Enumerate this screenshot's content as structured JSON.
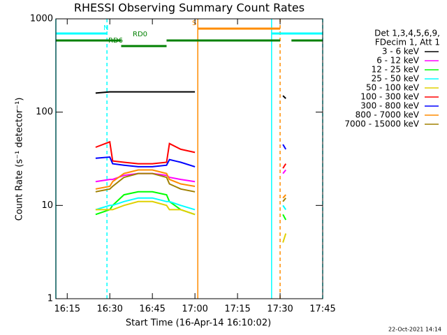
{
  "chart_data": {
    "type": "line",
    "title": "RHESSI Observing Summary Count Rates",
    "xlabel": "Start Time (16-Apr-14 16:10:02)",
    "ylabel": "Count Rate (s⁻¹ detector⁻¹)",
    "legend_header": [
      "Det 1,3,4,5,6,9,",
      "FDecim 1, Att 1"
    ],
    "timestamp": "22-Oct-2021 14:14",
    "log_y": true,
    "xlim": [
      "16:11",
      "17:45"
    ],
    "xticks": [
      "16:15",
      "16:30",
      "16:45",
      "17:00",
      "17:15",
      "17:30",
      "17:45"
    ],
    "ylim": [
      1,
      1000
    ],
    "yticks": [
      1,
      10,
      100,
      1000
    ],
    "x": [
      "16:25",
      "16:30",
      "16:31",
      "16:35",
      "16:40",
      "16:45",
      "16:50",
      "16:51",
      "16:55",
      "17:00",
      "17:15",
      "17:31",
      "17:32"
    ],
    "series": [
      {
        "name": "3 - 6 keV",
        "color": "#000000",
        "values": [
          160,
          165,
          165,
          165,
          165,
          165,
          165,
          165,
          165,
          165,
          null,
          150,
          140
        ]
      },
      {
        "name": "6 - 12 keV",
        "color": "#ff00ff",
        "values": [
          18,
          19,
          19,
          21,
          22,
          22,
          21,
          20,
          19,
          18,
          null,
          22,
          24
        ]
      },
      {
        "name": "12 - 25 keV",
        "color": "#00ff00",
        "values": [
          8,
          9,
          10,
          13,
          14,
          14,
          13,
          11,
          9,
          8,
          null,
          8,
          7
        ]
      },
      {
        "name": "25 - 50 keV",
        "color": "#00ffff",
        "values": [
          9,
          10,
          10,
          11,
          12,
          12,
          11,
          11,
          10,
          9,
          null,
          10,
          9
        ]
      },
      {
        "name": "50 - 100 keV",
        "color": "#e0d000",
        "values": [
          9,
          9,
          9,
          10,
          11,
          11,
          10,
          9,
          9,
          8,
          null,
          4,
          5
        ]
      },
      {
        "name": "100 - 300 keV",
        "color": "#ff0000",
        "values": [
          42,
          48,
          30,
          29,
          28,
          28,
          29,
          46,
          40,
          37,
          null,
          25,
          28
        ]
      },
      {
        "name": "300 - 800 keV",
        "color": "#0000ff",
        "values": [
          32,
          33,
          28,
          27,
          26,
          26,
          27,
          31,
          29,
          26,
          null,
          45,
          40
        ]
      },
      {
        "name": "800 - 7000 keV",
        "color": "#ff8c00",
        "values": [
          15,
          16,
          18,
          22,
          24,
          24,
          22,
          19,
          17,
          16,
          null,
          12,
          13
        ]
      },
      {
        "name": "7000 - 15000 keV",
        "color": "#a08000",
        "values": [
          14,
          15,
          16,
          20,
          22,
          22,
          20,
          17,
          15,
          14,
          null,
          11,
          12
        ]
      }
    ],
    "flags": [
      {
        "label": "N",
        "color": "#00ffff",
        "segments": [
          [
            "16:11",
            "16:29"
          ],
          [
            "17:27",
            "17:45"
          ]
        ]
      },
      {
        "label": "S",
        "color": "#ff8c00",
        "segments": [
          [
            "17:01",
            "17:30"
          ]
        ]
      },
      {
        "label": "RD0",
        "color": "#008000",
        "segments": [
          [
            "16:11",
            "16:34"
          ],
          [
            "16:50",
            "17:30"
          ],
          [
            "17:34",
            "17:45"
          ]
        ]
      },
      {
        "label": "RD6",
        "color": "#008000",
        "segments": [
          [
            "16:34",
            "16:50"
          ]
        ]
      }
    ],
    "markers": [
      {
        "time": "16:11",
        "color": "#00ffff",
        "dashed": false
      },
      {
        "time": "16:29",
        "color": "#00ffff",
        "dashed": true
      },
      {
        "time": "17:27",
        "color": "#00ffff",
        "dashed": false
      },
      {
        "time": "17:45",
        "color": "#00ffff",
        "dashed": true
      },
      {
        "time": "17:01",
        "color": "#ff8c00",
        "dashed": false
      },
      {
        "time": "17:30",
        "color": "#ff8c00",
        "dashed": true
      }
    ]
  }
}
